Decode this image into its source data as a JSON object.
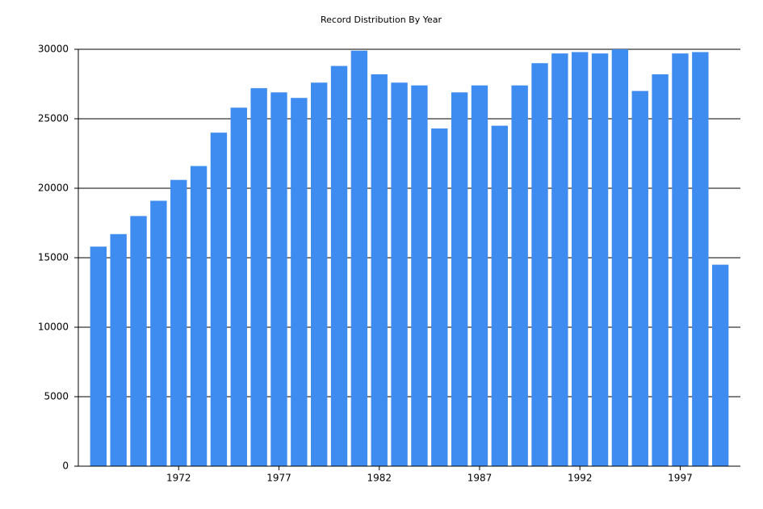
{
  "chart_data": {
    "type": "bar",
    "title": "Record Distribution By Year",
    "x": [
      1968,
      1969,
      1970,
      1971,
      1972,
      1973,
      1974,
      1975,
      1976,
      1977,
      1978,
      1979,
      1980,
      1981,
      1982,
      1983,
      1984,
      1985,
      1986,
      1987,
      1988,
      1989,
      1990,
      1991,
      1992,
      1993,
      1994,
      1995,
      1996,
      1997,
      1998,
      1999
    ],
    "values": [
      15800,
      16700,
      18000,
      19100,
      20600,
      21600,
      24000,
      25800,
      27200,
      26900,
      26500,
      27600,
      28800,
      29900,
      28200,
      27600,
      27400,
      24300,
      26900,
      27400,
      24500,
      27400,
      29000,
      29700,
      29800,
      29700,
      30000,
      27000,
      28200,
      29700,
      29800,
      14500
    ],
    "color": "#3f8cf0",
    "xlim": [
      1967,
      2000
    ],
    "xticks": [
      1972,
      1977,
      1982,
      1987,
      1992,
      1997
    ],
    "ylim": [
      0,
      30000
    ],
    "yticks": [
      0,
      5000,
      10000,
      15000,
      20000,
      25000,
      30000
    ],
    "grid": true
  }
}
